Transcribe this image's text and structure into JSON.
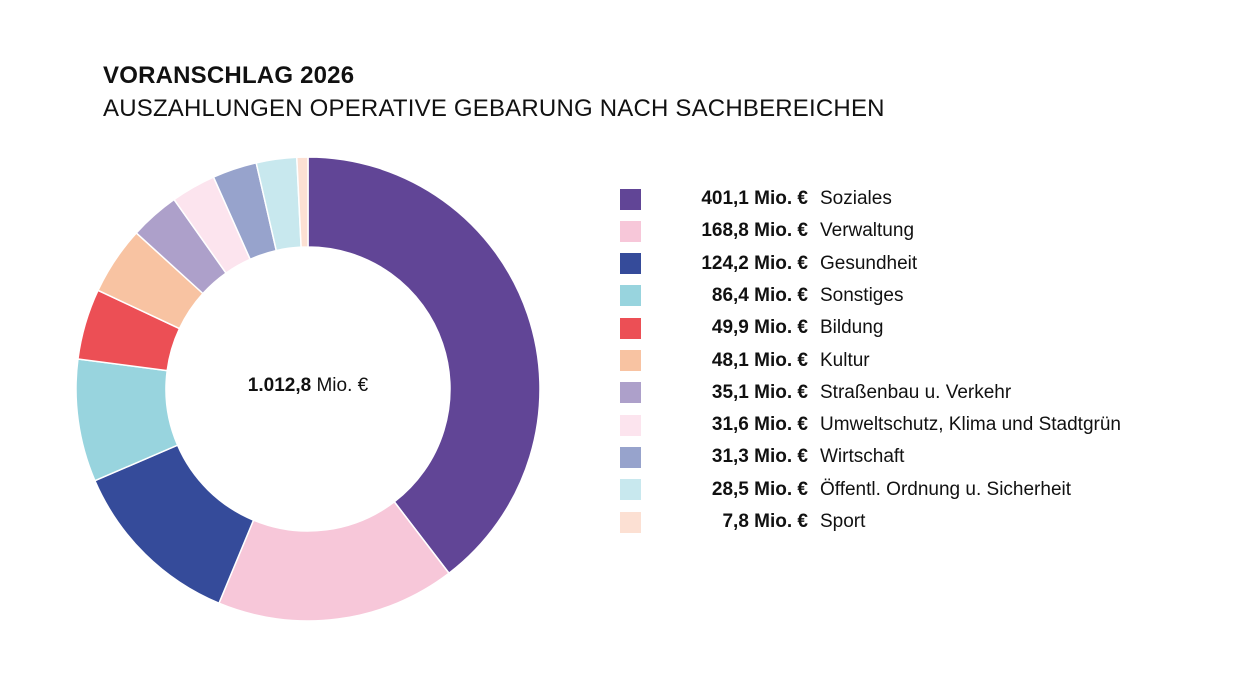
{
  "chart_data": {
    "type": "pie",
    "title": "VORANSCHLAG 2026",
    "subtitle": "AUSZAHLUNGEN OPERATIVE GEBARUNG NACH SACHBEREICHEN",
    "donut": true,
    "center_label": {
      "value": "1.012,8",
      "unit": "Mio. €"
    },
    "legend_position": "right",
    "unit": "Mio. €",
    "slices": [
      {
        "label": "Soziales",
        "value": 401.1,
        "display": "401,1",
        "color": "#614596"
      },
      {
        "label": "Verwaltung",
        "value": 168.8,
        "display": "168,8",
        "color": "#f7c7d9"
      },
      {
        "label": "Gesundheit",
        "value": 124.2,
        "display": "124,2",
        "color": "#354b9a"
      },
      {
        "label": "Sonstiges",
        "value": 86.4,
        "display": "86,4",
        "color": "#98d4de"
      },
      {
        "label": "Bildung",
        "value": 49.9,
        "display": "49,9",
        "color": "#ec4f55"
      },
      {
        "label": "Kultur",
        "value": 48.1,
        "display": "48,1",
        "color": "#f8c3a2"
      },
      {
        "label": "Straßenbau u. Verkehr",
        "value": 35.1,
        "display": "35,1",
        "color": "#ada0ca"
      },
      {
        "label": "Umweltschutz, Klima und Stadtgrün",
        "value": 31.6,
        "display": "31,6",
        "color": "#fce4ee"
      },
      {
        "label": "Wirtschaft",
        "value": 31.3,
        "display": "31,3",
        "color": "#97a3cc"
      },
      {
        "label": "Öffentl. Ordnung u. Sicherheit",
        "value": 28.5,
        "display": "28,5",
        "color": "#c8e8ee"
      },
      {
        "label": "Sport",
        "value": 7.8,
        "display": "7,8",
        "color": "#fce0d3"
      }
    ]
  }
}
